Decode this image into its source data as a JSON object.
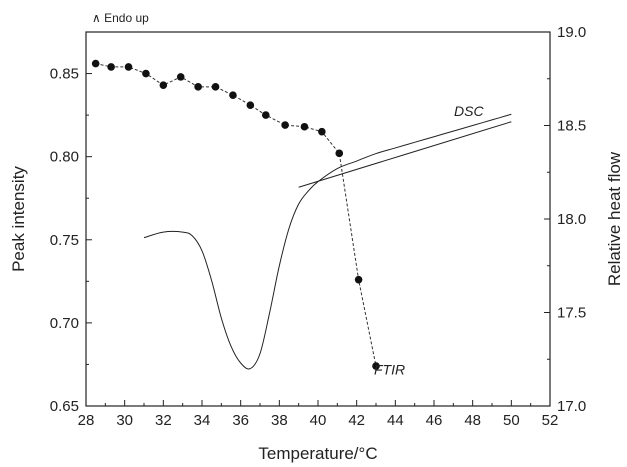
{
  "chart_data": {
    "type": "line",
    "xlabel": "Temperature/°C",
    "ylabel_left": "Peak intensity",
    "ylabel_right": "Relative heat flow",
    "top_left_label": "∧ Endo up",
    "xlim": [
      28,
      52
    ],
    "ylim_left": [
      0.65,
      0.875
    ],
    "ylim_right": [
      17.0,
      19.0
    ],
    "x_ticks": [
      28,
      30,
      32,
      34,
      36,
      38,
      40,
      42,
      44,
      46,
      48,
      50,
      52
    ],
    "y_left_ticks": [
      0.65,
      0.7,
      0.75,
      0.8,
      0.85
    ],
    "y_right_ticks": [
      17.0,
      17.5,
      18.0,
      18.5,
      19.0
    ],
    "tick_labels": {
      "x": [
        "28",
        "30",
        "32",
        "34",
        "36",
        "38",
        "40",
        "42",
        "44",
        "46",
        "48",
        "50",
        "52"
      ],
      "y_left": [
        "0.65",
        "0.70",
        "0.75",
        "0.80",
        "0.85"
      ],
      "y_right": [
        "17.0",
        "17.5",
        "18.0",
        "18.5",
        "19.0"
      ]
    },
    "grid": false,
    "series": [
      {
        "name": "FTIR",
        "axis": "left",
        "style": "dashed-markers",
        "x": [
          28.5,
          29.3,
          30.2,
          31.1,
          32.0,
          32.9,
          33.8,
          34.7,
          35.6,
          36.5,
          37.3,
          38.3,
          39.3,
          40.2,
          41.1,
          42.1,
          43.0
        ],
        "y": [
          0.856,
          0.854,
          0.854,
          0.85,
          0.843,
          0.848,
          0.842,
          0.842,
          0.837,
          0.831,
          0.825,
          0.819,
          0.818,
          0.815,
          0.802,
          0.726,
          0.674
        ]
      },
      {
        "name": "DSC",
        "axis": "right",
        "style": "line",
        "x": [
          31.0,
          32.0,
          33.0,
          33.5,
          34.0,
          34.5,
          35.0,
          35.5,
          36.0,
          36.5,
          37.0,
          37.5,
          38.0,
          38.5,
          39.0,
          39.5,
          40.0,
          41.0,
          42.0,
          43.0,
          44.0,
          45.0,
          46.0,
          47.0,
          48.0,
          49.0,
          50.0
        ],
        "y": [
          17.9,
          17.93,
          17.93,
          17.91,
          17.83,
          17.67,
          17.47,
          17.32,
          17.23,
          17.2,
          17.28,
          17.5,
          17.75,
          17.95,
          18.08,
          18.15,
          18.2,
          18.27,
          18.31,
          18.35,
          18.38,
          18.41,
          18.44,
          18.47,
          18.5,
          18.53,
          18.56
        ]
      },
      {
        "name": "DSC baseline",
        "axis": "right",
        "style": "line",
        "x": [
          39.0,
          50.0
        ],
        "y": [
          18.17,
          18.52
        ]
      }
    ],
    "annotations": [
      {
        "text": "DSC",
        "x": 47.8,
        "y_right": 18.55
      },
      {
        "text": "FTIR",
        "x": 43.7,
        "y_left": 0.672
      }
    ]
  }
}
